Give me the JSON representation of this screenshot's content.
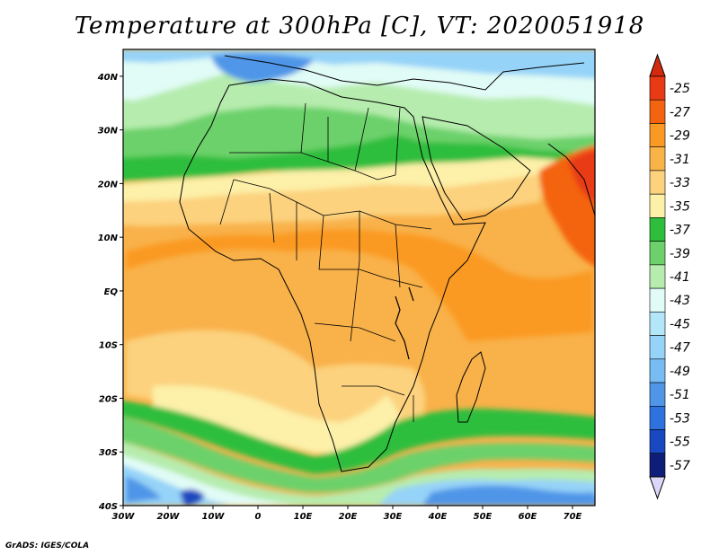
{
  "title": "Temperature at 300hPa [C], VT: 2020051918",
  "credit": "GrADS: IGES/COLA",
  "map": {
    "lon_range": [
      -30,
      75
    ],
    "lat_range": [
      -40,
      45
    ],
    "lon_ticks": [
      {
        "value": -30,
        "label": "30W"
      },
      {
        "value": -20,
        "label": "20W"
      },
      {
        "value": -10,
        "label": "10W"
      },
      {
        "value": 0,
        "label": "0"
      },
      {
        "value": 10,
        "label": "10E"
      },
      {
        "value": 20,
        "label": "20E"
      },
      {
        "value": 30,
        "label": "30E"
      },
      {
        "value": 40,
        "label": "40E"
      },
      {
        "value": 50,
        "label": "50E"
      },
      {
        "value": 60,
        "label": "60E"
      },
      {
        "value": 70,
        "label": "70E"
      }
    ],
    "lat_ticks": [
      {
        "value": 40,
        "label": "40N"
      },
      {
        "value": 30,
        "label": "30N"
      },
      {
        "value": 20,
        "label": "20N"
      },
      {
        "value": 10,
        "label": "10N"
      },
      {
        "value": 0,
        "label": "EQ"
      },
      {
        "value": -10,
        "label": "10S"
      },
      {
        "value": -20,
        "label": "20S"
      },
      {
        "value": -30,
        "label": "30S"
      },
      {
        "value": -40,
        "label": "40S"
      }
    ]
  },
  "colorbar": {
    "bins": [
      {
        "label": "-25",
        "color": "#e83a14"
      },
      {
        "label": "-27",
        "color": "#f46410"
      },
      {
        "label": "-29",
        "color": "#fa9a24"
      },
      {
        "label": "-31",
        "color": "#f8b448"
      },
      {
        "label": "-33",
        "color": "#fcd27e"
      },
      {
        "label": "-35",
        "color": "#fdf0a8"
      },
      {
        "label": "-37",
        "color": "#2fbe3c"
      },
      {
        "label": "-39",
        "color": "#6cd16a"
      },
      {
        "label": "-41",
        "color": "#b6ecae"
      },
      {
        "label": "-43",
        "color": "#e1fcf6"
      },
      {
        "label": "-45",
        "color": "#b4e6f9"
      },
      {
        "label": "-47",
        "color": "#96d3f8"
      },
      {
        "label": "-49",
        "color": "#78bcf4"
      },
      {
        "label": "-51",
        "color": "#5096e8"
      },
      {
        "label": "-53",
        "color": "#2e72de"
      },
      {
        "label": "-55",
        "color": "#1a48c0"
      },
      {
        "label": "-57",
        "color": "#0e1e78"
      }
    ],
    "top_triangle_color": "#d32a0e",
    "bottom_triangle_color": "#dcd6f8"
  }
}
